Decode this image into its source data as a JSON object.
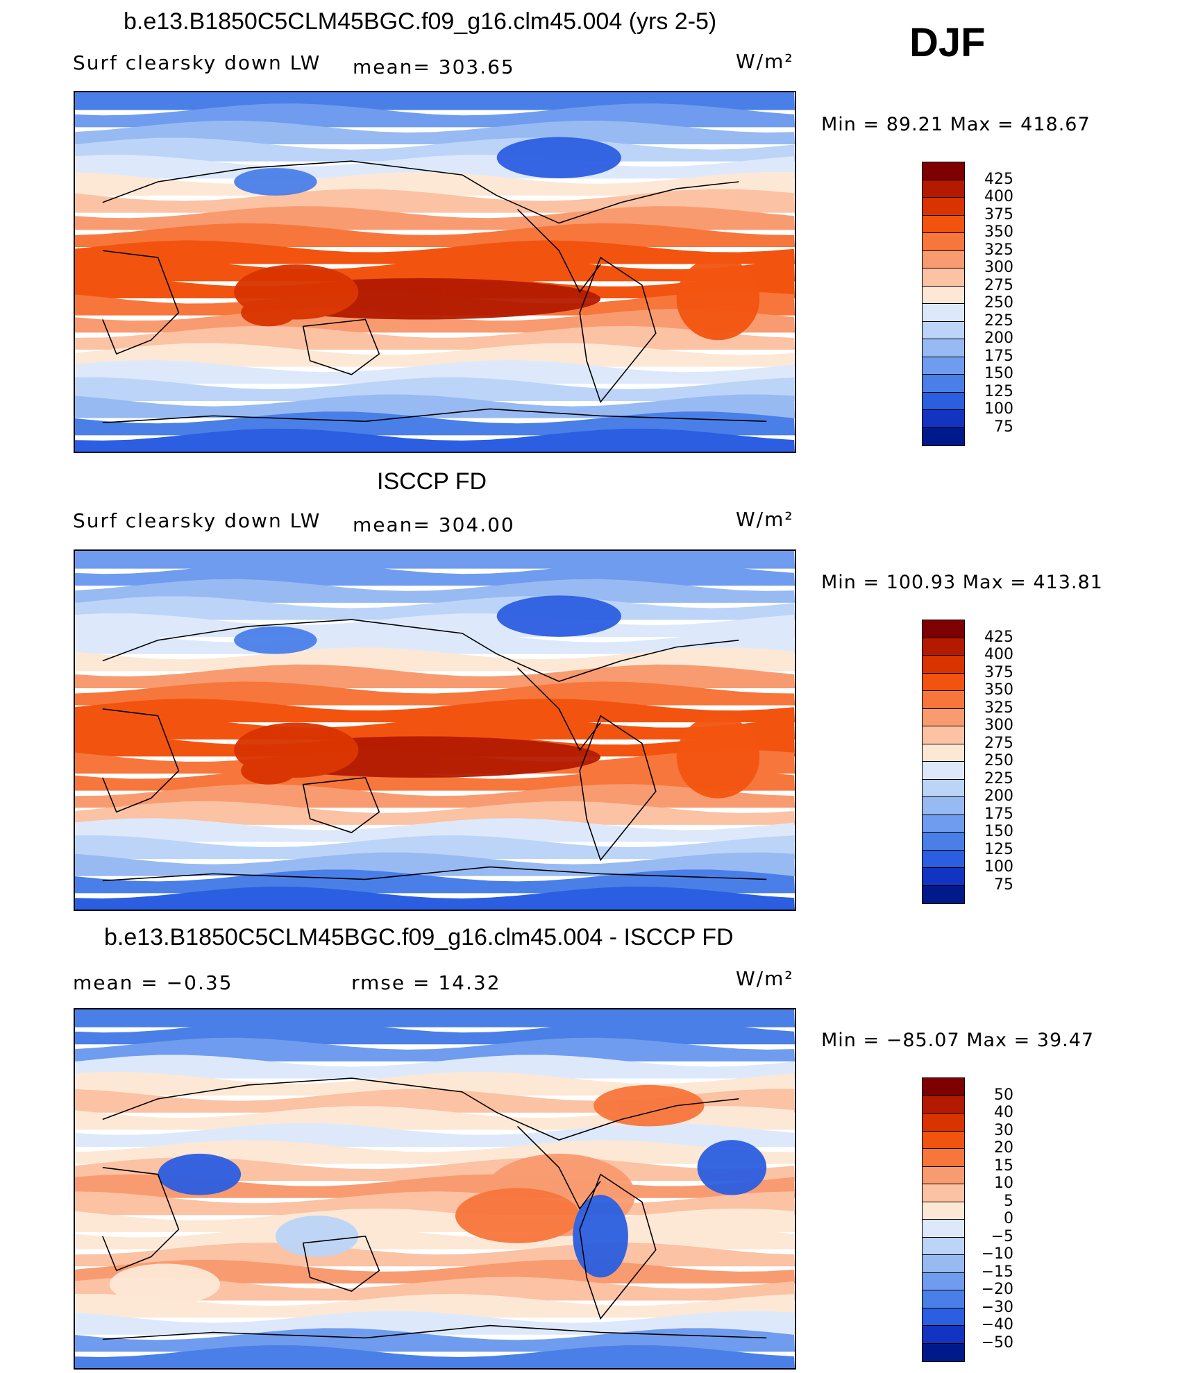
{
  "season_label": "DJF",
  "panels": [
    {
      "title": "b.e13.B1850C5CLM45BGC.f09_g16.clm45.004 (yrs 2-5)",
      "left_label": "Surf clearsky down LW",
      "mid_label": "mean= 303.65",
      "units": "W/m²",
      "minmax": "Min =   89.21 Max = 418.67",
      "levels": [
        "425",
        "400",
        "375",
        "350",
        "325",
        "300",
        "275",
        "250",
        "225",
        "200",
        "175",
        "150",
        "125",
        "100",
        "75"
      ],
      "field": "model"
    },
    {
      "title": "ISCCP FD",
      "left_label": "Surf clearsky down LW",
      "mid_label": "mean= 304.00",
      "units": "W/m²",
      "minmax": "Min = 100.93 Max = 413.81",
      "levels": [
        "425",
        "400",
        "375",
        "350",
        "325",
        "300",
        "275",
        "250",
        "225",
        "200",
        "175",
        "150",
        "125",
        "100",
        "75"
      ],
      "field": "obs"
    },
    {
      "title": "b.e13.B1850C5CLM45BGC.f09_g16.clm45.004 - ISCCP FD",
      "left_label": "mean =   −0.35",
      "mid_label": "rmse =   14.32",
      "units": "W/m²",
      "minmax": "Min = −85.07 Max =   39.47",
      "levels": [
        "50",
        "40",
        "30",
        "20",
        "15",
        "10",
        "5",
        "0",
        "−5",
        "−10",
        "−15",
        "−20",
        "−30",
        "−40",
        "−50"
      ],
      "field": "diff"
    }
  ],
  "colors": {
    "palette": [
      "#7f0000",
      "#b31a00",
      "#d93300",
      "#f25410",
      "#f7763c",
      "#f99b70",
      "#fbc2a4",
      "#fde8d6",
      "#dde9fb",
      "#bcd4f8",
      "#98baf3",
      "#6f9cee",
      "#4a7fe8",
      "#2b5ee0",
      "#1234c2",
      "#001a8c"
    ]
  }
}
